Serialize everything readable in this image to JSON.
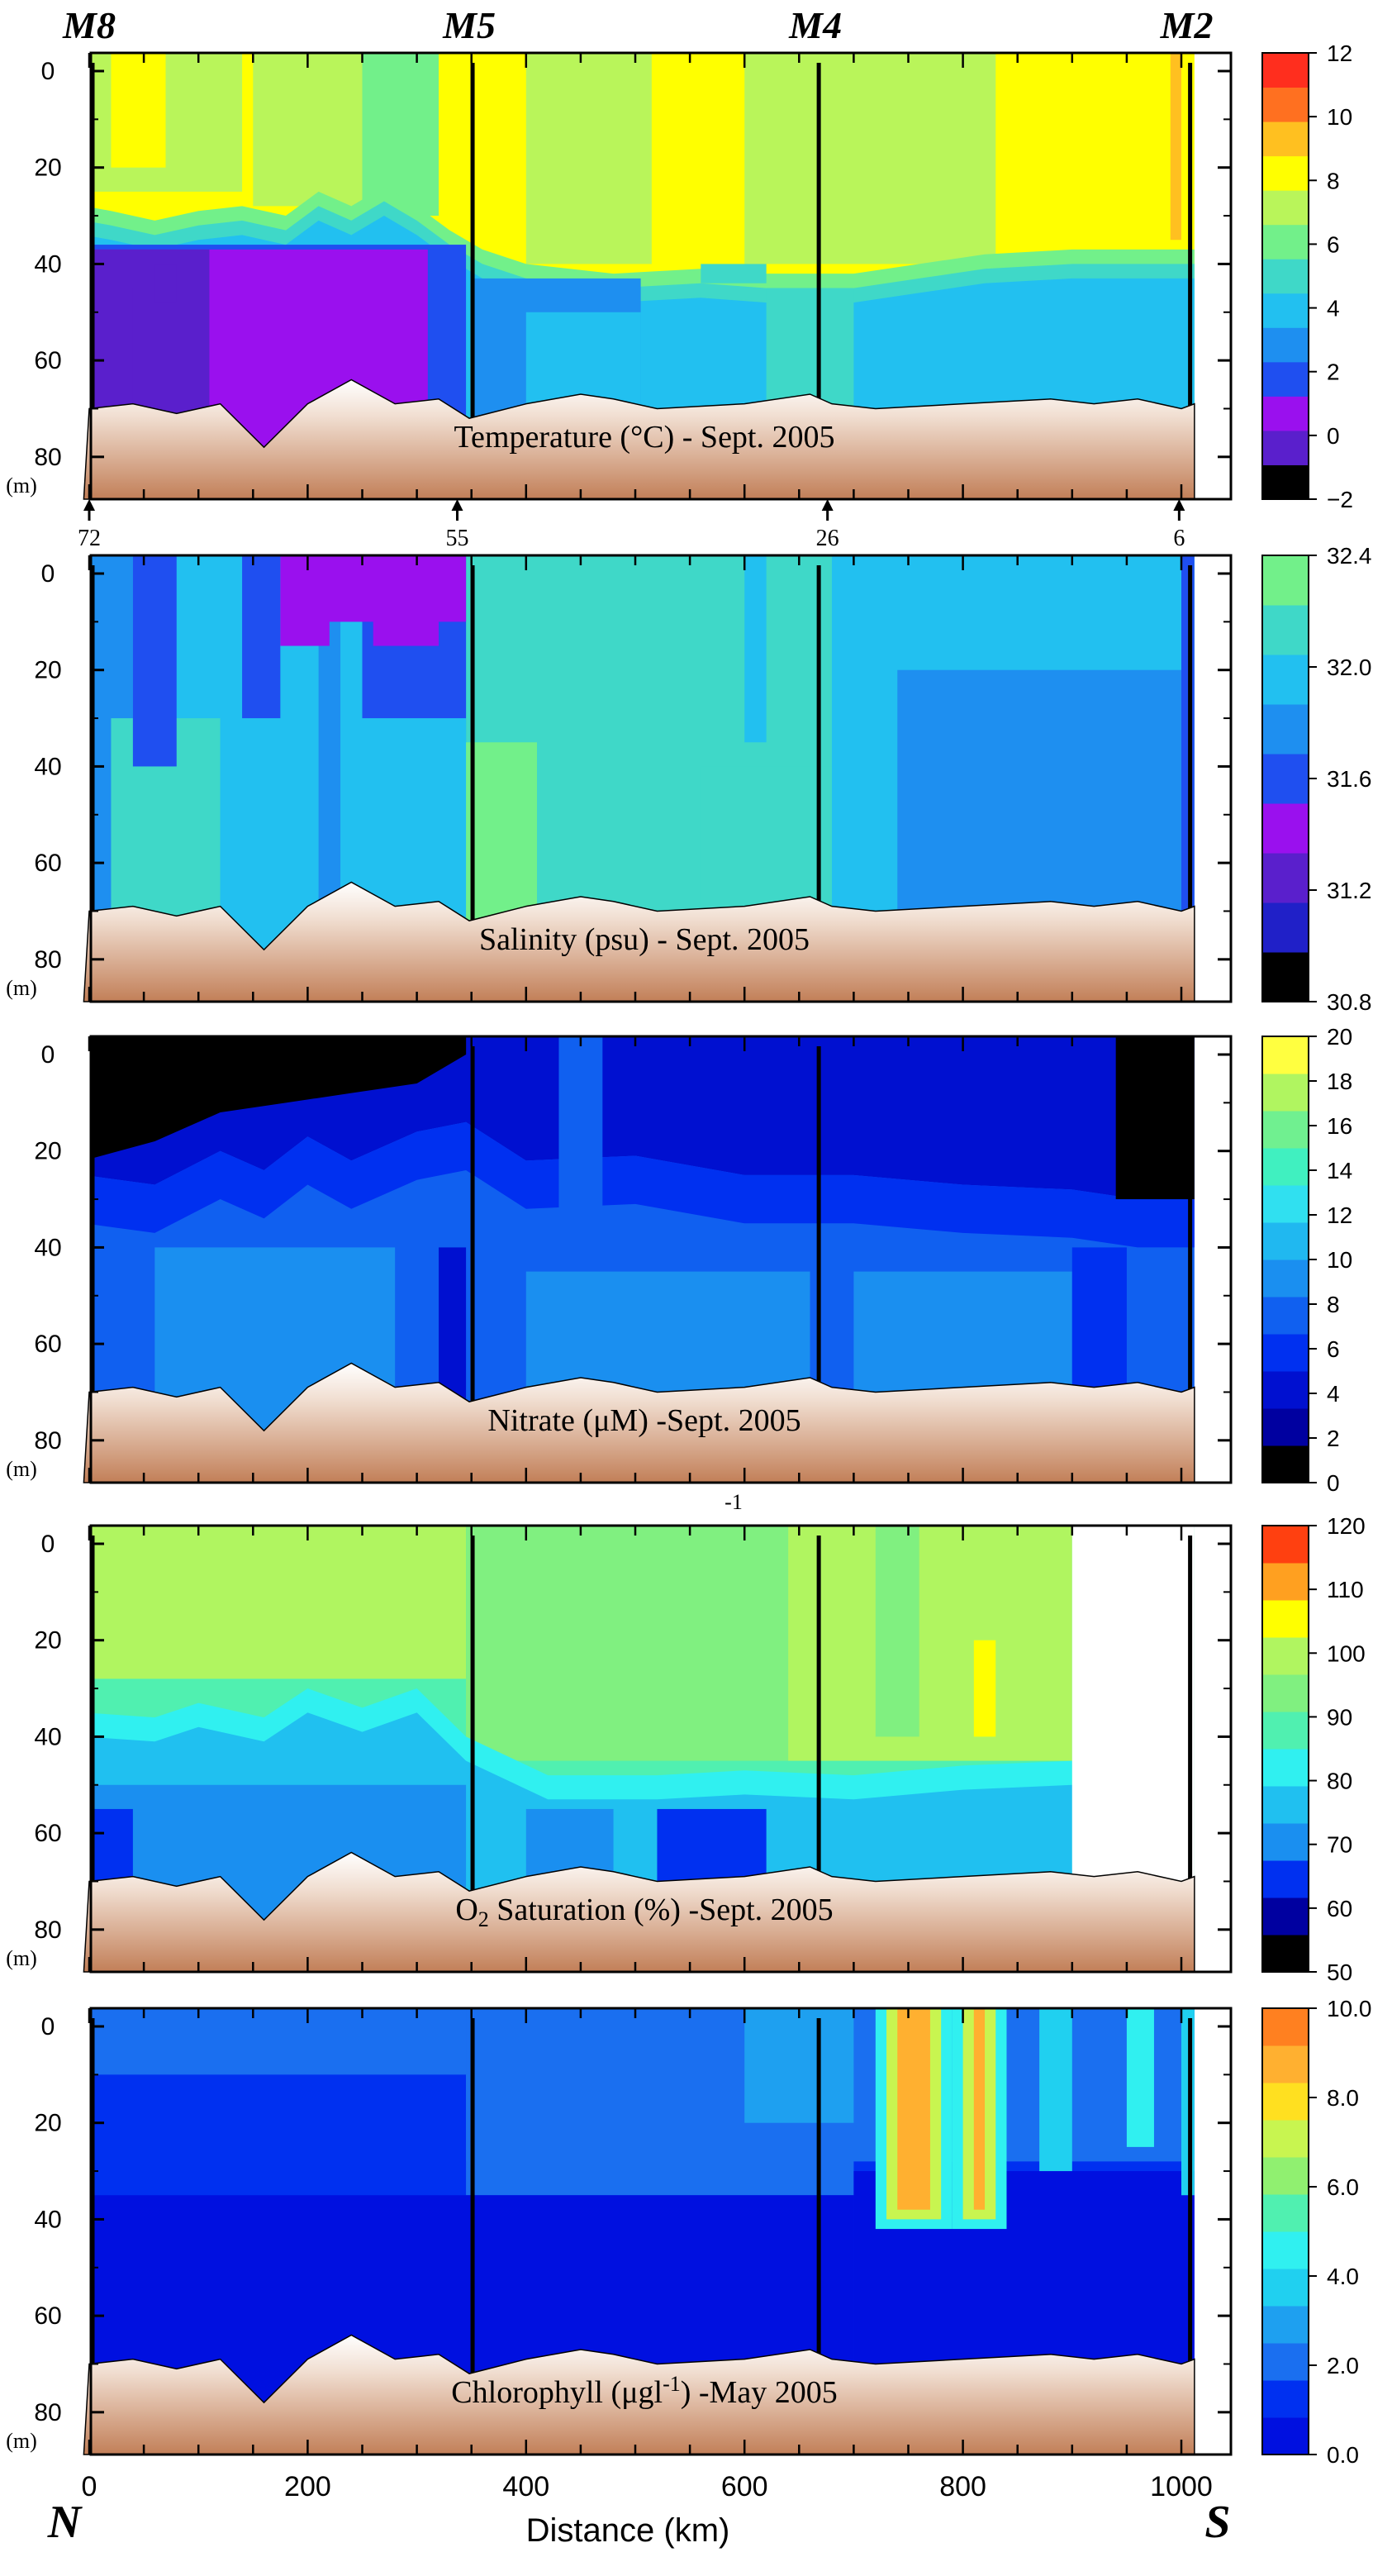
{
  "figure": {
    "stations": [
      {
        "name": "M8",
        "x": 0
      },
      {
        "name": "M5",
        "x": 348
      },
      {
        "name": "M4",
        "x": 665
      },
      {
        "name": "M2",
        "x": 1005
      }
    ],
    "station_numbers": [
      {
        "label": "72",
        "x": 0
      },
      {
        "label": "55",
        "x": 337
      },
      {
        "label": "26",
        "x": 676
      },
      {
        "label": "6",
        "x": 998
      }
    ],
    "depth_unit": "(m)",
    "superscript_note": "-1",
    "direction_left": "N",
    "direction_right": "S",
    "xlabel": "Distance (km)",
    "xticks": [
      "0",
      "200",
      "400",
      "600",
      "800",
      "1000"
    ],
    "yticks": [
      "0",
      "20",
      "40",
      "60",
      "80"
    ]
  },
  "chart_data": [
    {
      "type": "heatmap",
      "title": "Temperature  (°C) - Sept. 2005",
      "xlim": [
        0,
        1020
      ],
      "ylim": [
        0,
        85
      ],
      "colorbar": {
        "ticks": [
          "12",
          "10",
          "8",
          "6",
          "4",
          "2",
          "0",
          "−2"
        ],
        "colors": [
          "#000000",
          "#5a1fcc",
          "#9a10ee",
          "#1f4ff0",
          "#1e8ff0",
          "#22c0f0",
          "#3fd8c8",
          "#72f08a",
          "#b9f55a",
          "#ffff00",
          "#ffc020",
          "#ff7020",
          "#ff2e1e"
        ]
      },
      "layers": [
        {
          "name": "surface",
          "value": 9,
          "depth_by_x": [
            [
              0,
              28
            ],
            [
              100,
              29
            ],
            [
              200,
              26
            ],
            [
              300,
              30
            ],
            [
              400,
              35
            ],
            [
              600,
              38
            ],
            [
              800,
              40
            ],
            [
              1010,
              40
            ]
          ]
        },
        {
          "name": "deep",
          "value": 2,
          "depth_by_x": [
            [
              0,
              32
            ],
            [
              200,
              30
            ],
            [
              300,
              33
            ],
            [
              1010,
              40
            ]
          ]
        }
      ]
    },
    {
      "type": "heatmap",
      "title": "Salinity  (psu) - Sept. 2005",
      "xlim": [
        0,
        1020
      ],
      "ylim": [
        0,
        85
      ],
      "colorbar": {
        "ticks": [
          "32.4",
          "32.0",
          "31.6",
          "31.2",
          "30.8"
        ],
        "colors": [
          "#000000",
          "#2020c8",
          "#5a1fcc",
          "#9a10ee",
          "#1f4ff0",
          "#1e8ff0",
          "#22c0f0",
          "#3fd8c8",
          "#72f08a"
        ]
      }
    },
    {
      "type": "heatmap",
      "title": "Nitrate (μM) -Sept. 2005",
      "xlim": [
        0,
        1020
      ],
      "ylim": [
        0,
        85
      ],
      "colorbar": {
        "ticks": [
          "20",
          "18",
          "16",
          "14",
          "12",
          "10",
          "8",
          "6",
          "4",
          "2",
          "0"
        ],
        "colors": [
          "#000000",
          "#0000a0",
          "#0010d0",
          "#0030f0",
          "#1060f0",
          "#1a8ff0",
          "#20b8f0",
          "#30e0f0",
          "#40f0c0",
          "#70f090",
          "#b0f560",
          "#ffff40"
        ]
      }
    },
    {
      "type": "heatmap",
      "title_prefix": "O",
      "title_subscript": "2",
      "title_suffix": " Saturation (%) -Sept. 2005",
      "xlim": [
        0,
        1020
      ],
      "ylim": [
        0,
        85
      ],
      "colorbar": {
        "ticks": [
          "120",
          "110",
          "100",
          "90",
          "80",
          "70",
          "60",
          "50"
        ],
        "colors": [
          "#000000",
          "#0000a0",
          "#0030f0",
          "#1a8ff0",
          "#20c0f0",
          "#30f0f0",
          "#50f0b0",
          "#80f080",
          "#b0f560",
          "#ffff00",
          "#ffa020",
          "#ff4010"
        ]
      }
    },
    {
      "type": "heatmap",
      "title_prefix": "Chlorophyll (μgl",
      "title_superscript": "-1",
      "title_suffix": ") -May 2005",
      "xlim": [
        0,
        1020
      ],
      "ylim": [
        0,
        85
      ],
      "colorbar": {
        "ticks": [
          "10.0",
          "8.0",
          "6.0",
          "4.0",
          "2.0",
          "0.0"
        ],
        "colors": [
          "#0010e0",
          "#0030f0",
          "#1a6ff0",
          "#1ea0f0",
          "#20d0f0",
          "#30f0f0",
          "#50f0b0",
          "#90f070",
          "#c8f550",
          "#ffe020",
          "#ffb030",
          "#ff8020"
        ]
      }
    }
  ]
}
